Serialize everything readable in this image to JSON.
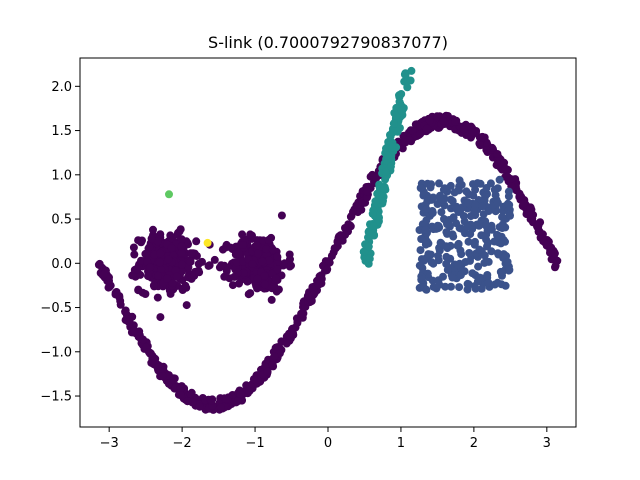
{
  "chart_data": {
    "type": "scatter",
    "title": "S-link (0.7000792790837077)",
    "xlabel": "",
    "ylabel": "",
    "xlim": [
      -3.4,
      3.4
    ],
    "ylim": [
      -1.85,
      2.32
    ],
    "xticks": [
      -3,
      -2,
      -1,
      0,
      1,
      2,
      3
    ],
    "yticks": [
      -1.5,
      -1.0,
      -0.5,
      0.0,
      0.5,
      1.0,
      1.5,
      2.0
    ],
    "ytick_labels": [
      "−1.5",
      "−1.0",
      "−0.5",
      "0.0",
      "0.5",
      "1.0",
      "1.5",
      "2.0"
    ],
    "xtick_labels": [
      "−3",
      "−2",
      "−1",
      "0",
      "1",
      "2",
      "3"
    ],
    "grid": false,
    "legend": "none",
    "clusters": [
      {
        "color": "#440154",
        "shape": "sine curve y = 1.6·sin(x) over x ∈ [-3.14, 3.14]",
        "x_range": [
          -3.14,
          3.14
        ],
        "y_range": [
          -1.6,
          1.7
        ],
        "count": 700
      },
      {
        "color": "#440154",
        "shape": "blob",
        "center": [
          -2.2,
          0.0
        ],
        "spread": 0.35,
        "count": 300
      },
      {
        "color": "#440154",
        "shape": "blob",
        "center": [
          -0.95,
          0.0
        ],
        "spread": 0.35,
        "count": 300
      },
      {
        "color": "#21918c",
        "shape": "diagonal segment",
        "from": [
          0.5,
          -0.02
        ],
        "to": [
          1.1,
          2.15
        ],
        "count": 150
      },
      {
        "color": "#3b528b",
        "shape": "uniform rectangle",
        "x_range": [
          1.25,
          2.5
        ],
        "y_range": [
          -0.3,
          0.95
        ],
        "count": 300
      },
      {
        "color": "#5ec962",
        "shape": "single point",
        "x": -2.18,
        "y": 0.78,
        "count": 1
      },
      {
        "color": "#fde725",
        "shape": "single point",
        "x": -1.65,
        "y": 0.23,
        "count": 1
      }
    ]
  }
}
